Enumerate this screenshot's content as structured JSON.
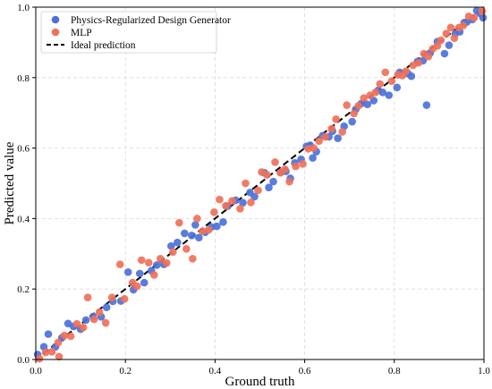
{
  "chart_data": {
    "type": "scatter",
    "xlabel": "Ground truth",
    "ylabel": "Predicted value",
    "xlim": [
      0,
      1
    ],
    "ylim": [
      0,
      1
    ],
    "xticks": [
      "0.0",
      "0.2",
      "0.4",
      "0.6",
      "0.8",
      "1.0"
    ],
    "yticks": [
      "0.0",
      "0.2",
      "0.4",
      "0.6",
      "0.8",
      "1.0"
    ],
    "grid": true,
    "legend_position": "top-left",
    "series": [
      {
        "name": "Physics-Regularized Design Generator",
        "color": "#4c72d8",
        "points": [
          [
            0.004,
            0.014
          ],
          [
            0.018,
            0.036
          ],
          [
            0.028,
            0.072
          ],
          [
            0.044,
            0.036
          ],
          [
            0.058,
            0.061
          ],
          [
            0.072,
            0.102
          ],
          [
            0.084,
            0.094
          ],
          [
            0.1,
            0.086
          ],
          [
            0.112,
            0.112
          ],
          [
            0.128,
            0.122
          ],
          [
            0.146,
            0.121
          ],
          [
            0.158,
            0.148
          ],
          [
            0.172,
            0.165
          ],
          [
            0.19,
            0.166
          ],
          [
            0.206,
            0.248
          ],
          [
            0.218,
            0.198
          ],
          [
            0.232,
            0.244
          ],
          [
            0.242,
            0.218
          ],
          [
            0.258,
            0.252
          ],
          [
            0.27,
            0.268
          ],
          [
            0.286,
            0.27
          ],
          [
            0.302,
            0.322
          ],
          [
            0.316,
            0.332
          ],
          [
            0.332,
            0.358
          ],
          [
            0.348,
            0.352
          ],
          [
            0.356,
            0.382
          ],
          [
            0.364,
            0.346
          ],
          [
            0.378,
            0.361
          ],
          [
            0.392,
            0.376
          ],
          [
            0.404,
            0.378
          ],
          [
            0.418,
            0.39
          ],
          [
            0.428,
            0.435
          ],
          [
            0.446,
            0.452
          ],
          [
            0.462,
            0.445
          ],
          [
            0.478,
            0.474
          ],
          [
            0.488,
            0.462
          ],
          [
            0.51,
            0.53
          ],
          [
            0.52,
            0.488
          ],
          [
            0.53,
            0.505
          ],
          [
            0.546,
            0.531
          ],
          [
            0.558,
            0.534
          ],
          [
            0.568,
            0.514
          ],
          [
            0.578,
            0.558
          ],
          [
            0.592,
            0.568
          ],
          [
            0.604,
            0.605
          ],
          [
            0.612,
            0.608
          ],
          [
            0.618,
            0.572
          ],
          [
            0.626,
            0.59
          ],
          [
            0.64,
            0.635
          ],
          [
            0.654,
            0.632
          ],
          [
            0.662,
            0.648
          ],
          [
            0.674,
            0.628
          ],
          [
            0.688,
            0.662
          ],
          [
            0.706,
            0.675
          ],
          [
            0.714,
            0.71
          ],
          [
            0.726,
            0.726
          ],
          [
            0.74,
            0.724
          ],
          [
            0.754,
            0.735
          ],
          [
            0.764,
            0.764
          ],
          [
            0.774,
            0.758
          ],
          [
            0.788,
            0.75
          ],
          [
            0.806,
            0.772
          ],
          [
            0.812,
            0.815
          ],
          [
            0.83,
            0.812
          ],
          [
            0.838,
            0.804
          ],
          [
            0.852,
            0.846
          ],
          [
            0.864,
            0.848
          ],
          [
            0.872,
            0.722
          ],
          [
            0.88,
            0.87
          ],
          [
            0.896,
            0.902
          ],
          [
            0.912,
            0.868
          ],
          [
            0.922,
            0.892
          ],
          [
            0.936,
            0.925
          ],
          [
            0.946,
            0.93
          ],
          [
            0.956,
            0.956
          ],
          [
            0.962,
            0.958
          ],
          [
            0.974,
            0.965
          ],
          [
            0.984,
            0.99
          ],
          [
            0.992,
            0.982
          ],
          [
            0.998,
            0.97
          ]
        ]
      },
      {
        "name": "MLP",
        "color": "#f0705a",
        "points": [
          [
            0.008,
            0.002
          ],
          [
            0.022,
            0.02
          ],
          [
            0.036,
            0.022
          ],
          [
            0.05,
            0.048
          ],
          [
            0.052,
            0.008
          ],
          [
            0.064,
            0.068
          ],
          [
            0.078,
            0.066
          ],
          [
            0.092,
            0.101
          ],
          [
            0.106,
            0.091
          ],
          [
            0.116,
            0.176
          ],
          [
            0.13,
            0.114
          ],
          [
            0.142,
            0.134
          ],
          [
            0.156,
            0.104
          ],
          [
            0.17,
            0.176
          ],
          [
            0.188,
            0.27
          ],
          [
            0.198,
            0.172
          ],
          [
            0.216,
            0.218
          ],
          [
            0.226,
            0.208
          ],
          [
            0.236,
            0.282
          ],
          [
            0.252,
            0.275
          ],
          [
            0.264,
            0.24
          ],
          [
            0.278,
            0.286
          ],
          [
            0.292,
            0.274
          ],
          [
            0.306,
            0.305
          ],
          [
            0.32,
            0.388
          ],
          [
            0.336,
            0.314
          ],
          [
            0.35,
            0.286
          ],
          [
            0.36,
            0.4
          ],
          [
            0.372,
            0.364
          ],
          [
            0.386,
            0.368
          ],
          [
            0.398,
            0.418
          ],
          [
            0.41,
            0.454
          ],
          [
            0.424,
            0.436
          ],
          [
            0.438,
            0.45
          ],
          [
            0.456,
            0.428
          ],
          [
            0.468,
            0.5
          ],
          [
            0.48,
            0.446
          ],
          [
            0.496,
            0.48
          ],
          [
            0.504,
            0.532
          ],
          [
            0.516,
            0.524
          ],
          [
            0.534,
            0.56
          ],
          [
            0.546,
            0.53
          ],
          [
            0.556,
            0.54
          ],
          [
            0.566,
            0.505
          ],
          [
            0.58,
            0.548
          ],
          [
            0.596,
            0.555
          ],
          [
            0.608,
            0.598
          ],
          [
            0.62,
            0.6
          ],
          [
            0.632,
            0.62
          ],
          [
            0.646,
            0.632
          ],
          [
            0.66,
            0.655
          ],
          [
            0.67,
            0.682
          ],
          [
            0.684,
            0.646
          ],
          [
            0.694,
            0.722
          ],
          [
            0.71,
            0.698
          ],
          [
            0.72,
            0.72
          ],
          [
            0.732,
            0.742
          ],
          [
            0.746,
            0.75
          ],
          [
            0.758,
            0.758
          ],
          [
            0.768,
            0.782
          ],
          [
            0.78,
            0.815
          ],
          [
            0.794,
            0.79
          ],
          [
            0.808,
            0.808
          ],
          [
            0.818,
            0.806
          ],
          [
            0.826,
            0.818
          ],
          [
            0.842,
            0.835
          ],
          [
            0.854,
            0.842
          ],
          [
            0.866,
            0.868
          ],
          [
            0.876,
            0.86
          ],
          [
            0.886,
            0.882
          ],
          [
            0.896,
            0.89
          ],
          [
            0.904,
            0.906
          ],
          [
            0.916,
            0.925
          ],
          [
            0.926,
            0.942
          ],
          [
            0.934,
            0.912
          ],
          [
            0.944,
            0.942
          ],
          [
            0.954,
            0.948
          ],
          [
            0.966,
            0.974
          ],
          [
            0.978,
            0.97
          ],
          [
            0.996,
            0.988
          ]
        ]
      }
    ],
    "reference_line": {
      "name": "Ideal prediction",
      "style": "dashed",
      "color": "#000000",
      "from": [
        0,
        0
      ],
      "to": [
        1,
        1
      ]
    }
  }
}
